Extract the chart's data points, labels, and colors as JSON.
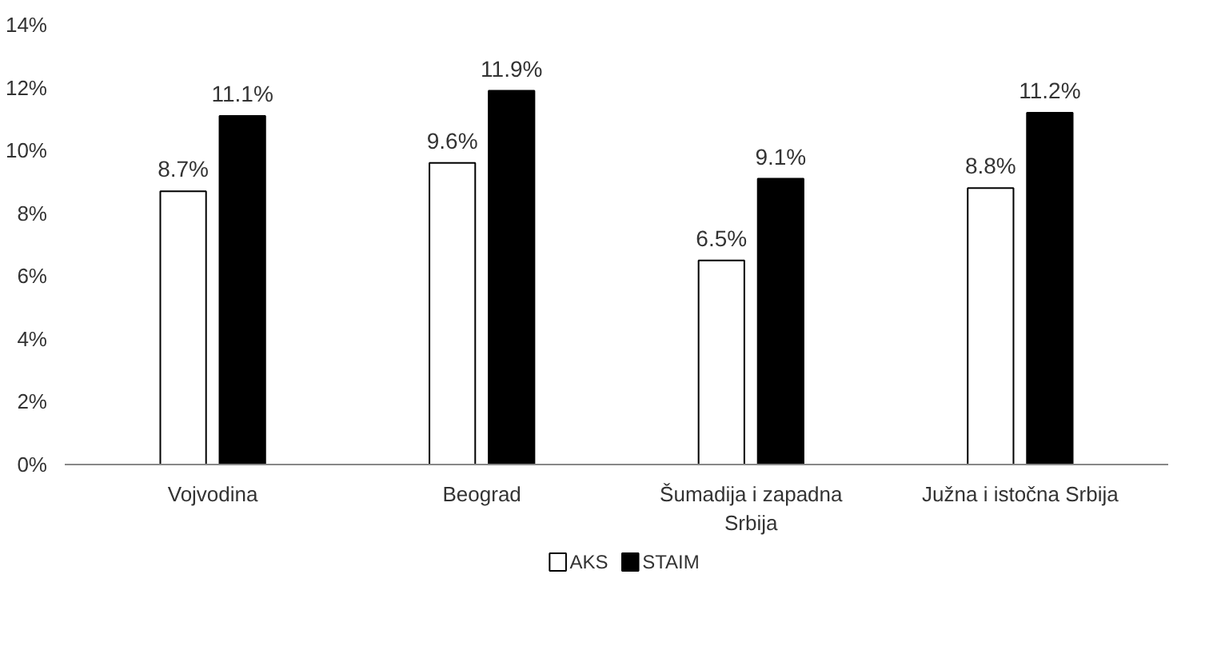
{
  "chart_data": {
    "type": "bar",
    "categories": [
      "Vojvodina",
      "Beograd",
      "Šumadija i zapadna Srbija",
      "Južna i istočna Srbija"
    ],
    "series": [
      {
        "name": "AKS",
        "color": "#ffffff",
        "values": [
          8.7,
          9.6,
          6.5,
          8.8
        ],
        "value_labels": [
          "8.7%",
          "9.6%",
          "6.5%",
          "8.8%"
        ]
      },
      {
        "name": "STAIM",
        "color": "#000000",
        "values": [
          11.1,
          11.9,
          9.1,
          11.2
        ],
        "value_labels": [
          "11.1%",
          "11.9%",
          "9.1%",
          "11.2%"
        ]
      }
    ],
    "ylim": [
      0,
      14
    ],
    "yticks": [
      {
        "value": 0,
        "label": "0%"
      },
      {
        "value": 2,
        "label": "2%"
      },
      {
        "value": 4,
        "label": "4%"
      },
      {
        "value": 6,
        "label": "6%"
      },
      {
        "value": 8,
        "label": "8%"
      },
      {
        "value": 10,
        "label": "10%"
      },
      {
        "value": 12,
        "label": "12%"
      },
      {
        "value": 14,
        "label": "14%"
      }
    ],
    "grid": false,
    "legend": "bottom"
  }
}
